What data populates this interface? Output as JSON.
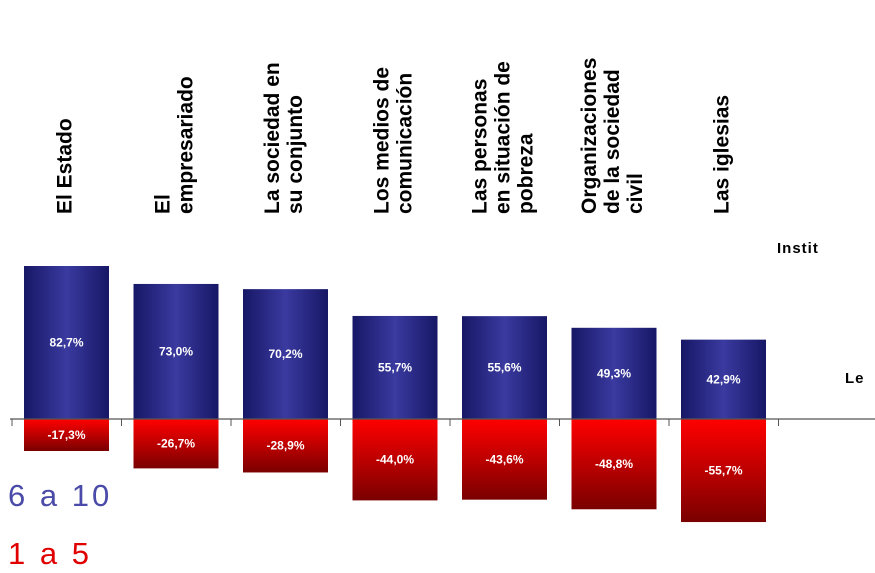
{
  "chart_data": {
    "type": "bar",
    "categories": [
      [
        "El Estado"
      ],
      [
        "El",
        "empresariado"
      ],
      [
        "La sociedad en",
        "su conjunto"
      ],
      [
        "Los medios de",
        "comunicación"
      ],
      [
        "Las personas",
        "en situación de",
        "pobreza"
      ],
      [
        "Organizaciones",
        "de la sociedad",
        "civil"
      ],
      [
        "Las iglesias"
      ]
    ],
    "series": [
      {
        "name": "6 a 10",
        "color": "#2b2b84",
        "values": [
          82.7,
          73.0,
          70.2,
          55.7,
          55.6,
          49.3,
          42.9
        ],
        "labels": [
          "82,7%",
          "73,0%",
          "70,2%",
          "55,7%",
          "55,6%",
          "49,3%",
          "42,9%"
        ]
      },
      {
        "name": "1 a 5",
        "color": "#e00000",
        "values": [
          -17.3,
          -26.7,
          -28.9,
          -44.0,
          -43.6,
          -48.8,
          -55.7
        ],
        "labels": [
          "-17,3%",
          "-26,7%",
          "-28,9%",
          "-44,0%",
          "-43,6%",
          "-48,8%",
          "-55,7%"
        ]
      }
    ],
    "ylim": [
      -60,
      100
    ],
    "grid": false,
    "legend_placement": "bottom-left"
  },
  "side_labels": {
    "top": "Instit",
    "middle": "Le"
  },
  "legend": {
    "positive": {
      "label": "6 a 10",
      "color": "#4a4aa8"
    },
    "negative": {
      "label": "1 a 5",
      "color": "#e00000"
    }
  }
}
